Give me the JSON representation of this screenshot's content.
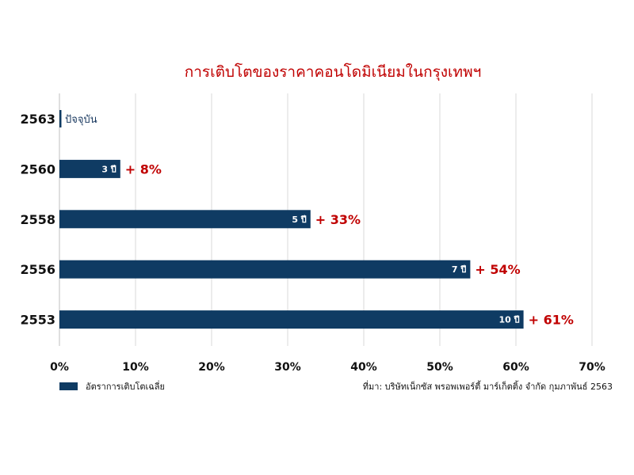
{
  "chart_data": {
    "type": "bar",
    "orientation": "horizontal",
    "title": "การเติบโตของราคาคอนโดมิเนียมในกรุงเทพฯ",
    "categories": [
      "2563",
      "2560",
      "2558",
      "2556",
      "2553"
    ],
    "series": [
      {
        "name": "อัตราการเติบโตเฉลี่ย",
        "values": [
          0,
          8,
          33,
          54,
          61
        ],
        "bar_labels": [
          "",
          "3 ปี",
          "5 ปี",
          "7 ปี",
          "10 ปี"
        ],
        "growth_labels": [
          "",
          "+ 8%",
          "+ 33%",
          "+ 54%",
          "+ 61%"
        ]
      }
    ],
    "current_marker": {
      "category": "2563",
      "label": "ปัจจุบัน"
    },
    "x_ticks": [
      "0%",
      "10%",
      "20%",
      "30%",
      "40%",
      "50%",
      "60%",
      "70%"
    ],
    "xlim": [
      0,
      70
    ],
    "grid": true,
    "legend_position": "bottom-left",
    "colors": {
      "bar": "#0f3b63",
      "accent": "#c00000",
      "grid": "#d9d9d9"
    }
  },
  "legend": {
    "label": "อัตราการเติบโตเฉลี่ย"
  },
  "source": "ที่มา: บริษัทเน็กซัส พรอพเพอร์ตี้ มาร์เก็ตติ้ง จำกัด กุมภาพันธ์ 2563"
}
